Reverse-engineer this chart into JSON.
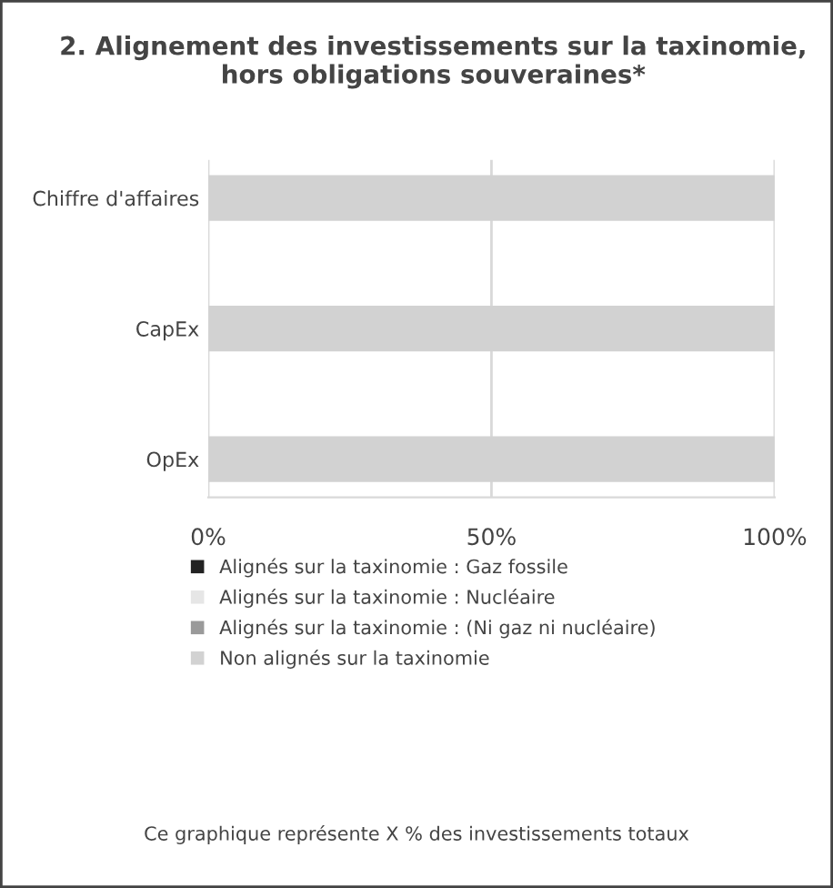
{
  "chart_data": {
    "type": "bar",
    "orientation": "horizontal",
    "stacked": true,
    "title": "2. Alignement des investissements sur la taxinomie, hors obligations souveraines*",
    "categories": [
      "Chiffre d'affaires",
      "CapEx",
      "OpEx"
    ],
    "series": [
      {
        "name": "Alignés sur la taxinomie : Gaz fossile",
        "color": "#222222",
        "values": [
          0,
          0,
          0
        ]
      },
      {
        "name": "Alignés sur la taxinomie : Nucléaire",
        "color": "#e6e6e6",
        "values": [
          0,
          0,
          0
        ]
      },
      {
        "name": "Alignés sur la taxinomie : (Ni gaz ni nucléaire)",
        "color": "#9a9a9a",
        "values": [
          0,
          0,
          0
        ]
      },
      {
        "name": "Non alignés sur la taxinomie",
        "color": "#d2d2d2",
        "values": [
          100,
          100,
          100
        ]
      }
    ],
    "xlim": [
      0,
      100
    ],
    "xticks": [
      {
        "value": 0,
        "label": "0%"
      },
      {
        "value": 50,
        "label": "50%"
      },
      {
        "value": 100,
        "label": "100%"
      }
    ],
    "grid": "x",
    "legend": "bottom",
    "annotations": [
      "Ce graphique représente X % des investissements totaux"
    ]
  }
}
